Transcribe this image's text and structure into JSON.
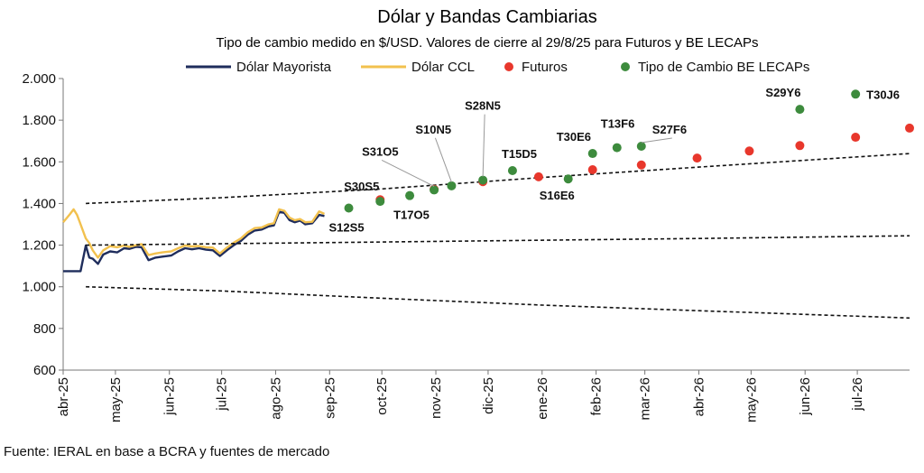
{
  "chart_data": {
    "type": "line",
    "title": "Dólar y Bandas Cambiarias",
    "subtitle": "Tipo de cambio medido en $/USD. Valores de cierre al 29/8/25 para Futuros y BE LECAPs",
    "source": "Fuente: IERAL en base a BCRA y fuentes de mercado",
    "xlabel": "",
    "ylabel": "",
    "x_range": [
      "2025-04-01",
      "2026-07-31"
    ],
    "ylim": [
      600,
      2000
    ],
    "yticks": [
      600,
      800,
      1000,
      1200,
      1400,
      1600,
      1800,
      2000
    ],
    "ytick_labels": [
      "600",
      "800",
      "1.000",
      "1.200",
      "1.400",
      "1.600",
      "1.800",
      "2.000"
    ],
    "xticks": [
      {
        "date": "2025-04-01",
        "label": "abr-25"
      },
      {
        "date": "2025-05-01",
        "label": "may-25"
      },
      {
        "date": "2025-06-01",
        "label": "jun-25"
      },
      {
        "date": "2025-07-01",
        "label": "jul-25"
      },
      {
        "date": "2025-08-01",
        "label": "ago-25"
      },
      {
        "date": "2025-09-01",
        "label": "sep-25"
      },
      {
        "date": "2025-10-01",
        "label": "oct-25"
      },
      {
        "date": "2025-11-01",
        "label": "nov-25"
      },
      {
        "date": "2025-12-01",
        "label": "dic-25"
      },
      {
        "date": "2026-01-01",
        "label": "ene-26"
      },
      {
        "date": "2026-02-01",
        "label": "feb-26"
      },
      {
        "date": "2026-03-01",
        "label": "mar-26"
      },
      {
        "date": "2026-04-01",
        "label": "abr-26"
      },
      {
        "date": "2026-05-01",
        "label": "may-26"
      },
      {
        "date": "2026-06-01",
        "label": "jun-26"
      },
      {
        "date": "2026-07-01",
        "label": "jul-26"
      }
    ],
    "legend": {
      "placement": "top"
    },
    "series": [
      {
        "name": "Dólar Mayorista",
        "type": "line",
        "color": "#1f2d5c",
        "points": [
          [
            "2025-04-01",
            1075
          ],
          [
            "2025-04-04",
            1075
          ],
          [
            "2025-04-08",
            1075
          ],
          [
            "2025-04-11",
            1075
          ],
          [
            "2025-04-14",
            1198
          ],
          [
            "2025-04-16",
            1140
          ],
          [
            "2025-04-18",
            1135
          ],
          [
            "2025-04-21",
            1110
          ],
          [
            "2025-04-24",
            1155
          ],
          [
            "2025-04-28",
            1170
          ],
          [
            "2025-05-02",
            1165
          ],
          [
            "2025-05-06",
            1185
          ],
          [
            "2025-05-09",
            1182
          ],
          [
            "2025-05-13",
            1192
          ],
          [
            "2025-05-16",
            1190
          ],
          [
            "2025-05-20",
            1128
          ],
          [
            "2025-05-24",
            1140
          ],
          [
            "2025-05-28",
            1145
          ],
          [
            "2025-06-02",
            1150
          ],
          [
            "2025-06-06",
            1170
          ],
          [
            "2025-06-10",
            1185
          ],
          [
            "2025-06-14",
            1180
          ],
          [
            "2025-06-18",
            1185
          ],
          [
            "2025-06-22",
            1178
          ],
          [
            "2025-06-26",
            1175
          ],
          [
            "2025-06-30",
            1148
          ],
          [
            "2025-07-04",
            1175
          ],
          [
            "2025-07-08",
            1200
          ],
          [
            "2025-07-12",
            1220
          ],
          [
            "2025-07-16",
            1250
          ],
          [
            "2025-07-20",
            1270
          ],
          [
            "2025-07-24",
            1275
          ],
          [
            "2025-07-28",
            1290
          ],
          [
            "2025-07-31",
            1295
          ],
          [
            "2025-08-03",
            1360
          ],
          [
            "2025-08-06",
            1355
          ],
          [
            "2025-08-09",
            1320
          ],
          [
            "2025-08-12",
            1310
          ],
          [
            "2025-08-15",
            1318
          ],
          [
            "2025-08-18",
            1300
          ],
          [
            "2025-08-22",
            1305
          ],
          [
            "2025-08-26",
            1345
          ],
          [
            "2025-08-29",
            1340
          ]
        ]
      },
      {
        "name": "Dólar CCL",
        "type": "line",
        "color": "#f2c14e",
        "points": [
          [
            "2025-04-01",
            1310
          ],
          [
            "2025-04-03",
            1330
          ],
          [
            "2025-04-05",
            1350
          ],
          [
            "2025-04-07",
            1372
          ],
          [
            "2025-04-09",
            1345
          ],
          [
            "2025-04-11",
            1300
          ],
          [
            "2025-04-14",
            1232
          ],
          [
            "2025-04-16",
            1210
          ],
          [
            "2025-04-18",
            1175
          ],
          [
            "2025-04-21",
            1140
          ],
          [
            "2025-04-24",
            1175
          ],
          [
            "2025-04-28",
            1195
          ],
          [
            "2025-05-02",
            1190
          ],
          [
            "2025-05-06",
            1198
          ],
          [
            "2025-05-09",
            1192
          ],
          [
            "2025-05-13",
            1200
          ],
          [
            "2025-05-16",
            1205
          ],
          [
            "2025-05-20",
            1152
          ],
          [
            "2025-05-24",
            1160
          ],
          [
            "2025-05-28",
            1165
          ],
          [
            "2025-06-02",
            1170
          ],
          [
            "2025-06-06",
            1185
          ],
          [
            "2025-06-10",
            1198
          ],
          [
            "2025-06-14",
            1194
          ],
          [
            "2025-06-18",
            1196
          ],
          [
            "2025-06-22",
            1190
          ],
          [
            "2025-06-26",
            1188
          ],
          [
            "2025-06-30",
            1160
          ],
          [
            "2025-07-04",
            1188
          ],
          [
            "2025-07-08",
            1212
          ],
          [
            "2025-07-12",
            1232
          ],
          [
            "2025-07-16",
            1262
          ],
          [
            "2025-07-20",
            1282
          ],
          [
            "2025-07-24",
            1285
          ],
          [
            "2025-07-28",
            1300
          ],
          [
            "2025-07-31",
            1305
          ],
          [
            "2025-08-03",
            1372
          ],
          [
            "2025-08-06",
            1365
          ],
          [
            "2025-08-09",
            1332
          ],
          [
            "2025-08-12",
            1320
          ],
          [
            "2025-08-15",
            1325
          ],
          [
            "2025-08-18",
            1310
          ],
          [
            "2025-08-22",
            1312
          ],
          [
            "2025-08-26",
            1362
          ],
          [
            "2025-08-29",
            1350
          ]
        ]
      },
      {
        "name": "Banda superior",
        "legend": false,
        "type": "dashed",
        "color": "#111111",
        "points": [
          [
            "2025-04-14",
            1400
          ],
          [
            "2025-07-01",
            1428
          ],
          [
            "2025-10-01",
            1470
          ],
          [
            "2026-01-01",
            1525
          ],
          [
            "2026-04-01",
            1575
          ],
          [
            "2026-07-31",
            1640
          ]
        ]
      },
      {
        "name": "Banda media",
        "legend": false,
        "type": "dashed",
        "color": "#111111",
        "points": [
          [
            "2025-04-14",
            1200
          ],
          [
            "2025-10-01",
            1215
          ],
          [
            "2026-04-01",
            1232
          ],
          [
            "2026-07-31",
            1245
          ]
        ]
      },
      {
        "name": "Banda inferior",
        "legend": false,
        "type": "dashed",
        "color": "#111111",
        "points": [
          [
            "2025-04-14",
            1000
          ],
          [
            "2025-07-01",
            980
          ],
          [
            "2025-10-01",
            945
          ],
          [
            "2026-01-01",
            912
          ],
          [
            "2026-04-01",
            885
          ],
          [
            "2026-07-31",
            850
          ]
        ]
      },
      {
        "name": "Futuros",
        "type": "scatter",
        "color": "#e8372c",
        "points": [
          [
            "2025-09-30",
            1418
          ],
          [
            "2025-10-31",
            1468
          ],
          [
            "2025-11-28",
            1505
          ],
          [
            "2025-12-30",
            1528
          ],
          [
            "2026-01-30",
            1562
          ],
          [
            "2026-02-27",
            1585
          ],
          [
            "2026-03-31",
            1618
          ],
          [
            "2026-04-30",
            1652
          ],
          [
            "2026-05-29",
            1678
          ],
          [
            "2026-06-30",
            1718
          ],
          [
            "2026-07-31",
            1762
          ]
        ]
      },
      {
        "name": "Tipo de Cambio BE LECAPs",
        "type": "scatter",
        "color": "#3d8b3d",
        "points": [
          {
            "x": "2025-09-12",
            "y": 1378,
            "label": "S12S5"
          },
          {
            "x": "2025-09-30",
            "y": 1410,
            "label": "S30S5"
          },
          {
            "x": "2025-10-17",
            "y": 1438,
            "label": "T17O5"
          },
          {
            "x": "2025-10-31",
            "y": 1465,
            "label": "S31O5"
          },
          {
            "x": "2025-11-10",
            "y": 1485,
            "label": "S10N5"
          },
          {
            "x": "2025-11-28",
            "y": 1512,
            "label": "S28N5"
          },
          {
            "x": "2025-12-15",
            "y": 1558,
            "label": "T15D5"
          },
          {
            "x": "2026-01-16",
            "y": 1518,
            "label": "S16E6"
          },
          {
            "x": "2026-01-30",
            "y": 1640,
            "label": "T30E6"
          },
          {
            "x": "2026-02-13",
            "y": 1668,
            "label": "T13F6"
          },
          {
            "x": "2026-02-27",
            "y": 1675,
            "label": "S27F6"
          },
          {
            "x": "2026-05-29",
            "y": 1852,
            "label": "S29Y6"
          },
          {
            "x": "2026-06-30",
            "y": 1925,
            "label": "T30J6"
          }
        ]
      }
    ]
  }
}
